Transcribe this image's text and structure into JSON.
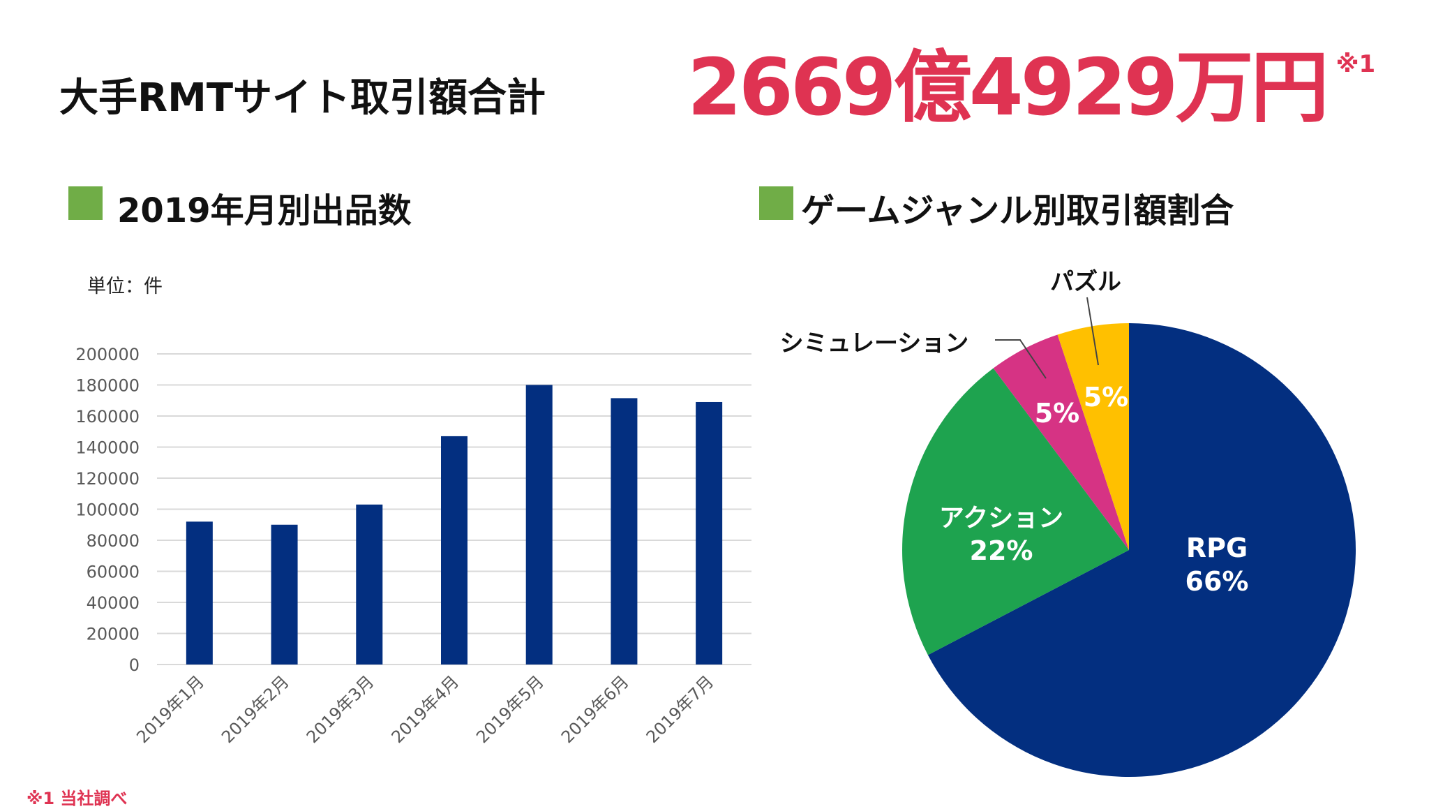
{
  "header": {
    "title": "大手RMTサイト取引額合計",
    "total": "2669億4929万円",
    "total_note_mark": "※1"
  },
  "footnote": "※1 当社調べ",
  "colors": {
    "accent_red": "#df3352",
    "section_marker": "#70ad47"
  },
  "chart_data": [
    {
      "type": "bar",
      "title": "2019年月別出品数",
      "unit_label": "単位：件",
      "categories": [
        "2019年1月",
        "2019年2月",
        "2019年3月",
        "2019年4月",
        "2019年5月",
        "2019年6月",
        "2019年7月"
      ],
      "values": [
        92000,
        90000,
        103000,
        147000,
        180000,
        171500,
        169000
      ],
      "ylim": [
        0,
        200000
      ],
      "yticks": [
        "0",
        "20000",
        "40000",
        "60000",
        "80000",
        "100000",
        "120000",
        "140000",
        "160000",
        "180000",
        "200000"
      ],
      "grid": true,
      "color": "#032f80"
    },
    {
      "type": "pie",
      "title": "ゲームジャンル別取引額割合",
      "slices": [
        {
          "label": "RPG",
          "value": 66,
          "value_label": "66%",
          "color": "#032f80"
        },
        {
          "label": "アクション",
          "value": 22,
          "value_label": "22%",
          "color": "#1ea34f"
        },
        {
          "label": "シミュレーション",
          "value": 5,
          "value_label": "5%",
          "color": "#d63384"
        },
        {
          "label": "パズル",
          "value": 5,
          "value_label": "5%",
          "color": "#ffc000"
        }
      ]
    }
  ]
}
